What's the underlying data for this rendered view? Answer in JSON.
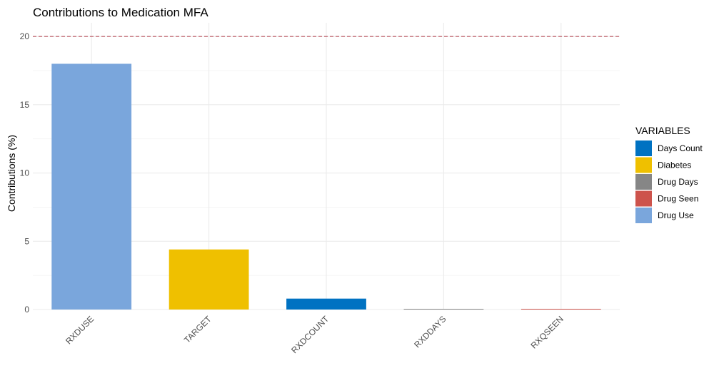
{
  "chart_data": {
    "type": "bar",
    "title": "Contributions to Medication MFA",
    "xlabel": "",
    "ylabel": "Contributions (%)",
    "categories": [
      "RXDUSE",
      "TARGET",
      "RXDCOUNT",
      "RXDDAYS",
      "RXQSEEN"
    ],
    "values": [
      18.0,
      4.4,
      0.8,
      0.03,
      0.03
    ],
    "bar_groups": [
      "Drug Use",
      "Diabetes",
      "Days Count",
      "Drug Days",
      "Drug Seen"
    ],
    "ylim": [
      0,
      21
    ],
    "yticks": [
      0,
      5,
      10,
      15,
      20
    ],
    "ytick_labels": [
      "0",
      "5",
      "10",
      "15",
      "20"
    ],
    "reference_line": {
      "value": 20,
      "color": "#b03a48",
      "style": "dashed"
    },
    "grid": true,
    "legend": {
      "title": "VARIABLES",
      "placement": "right",
      "items": [
        {
          "label": "Days Count",
          "color": "#0072c2"
        },
        {
          "label": "Diabetes",
          "color": "#efc000"
        },
        {
          "label": "Drug Days",
          "color": "#868686"
        },
        {
          "label": "Drug Seen",
          "color": "#cd534c"
        },
        {
          "label": "Drug Use",
          "color": "#7aa6dc"
        }
      ]
    }
  }
}
